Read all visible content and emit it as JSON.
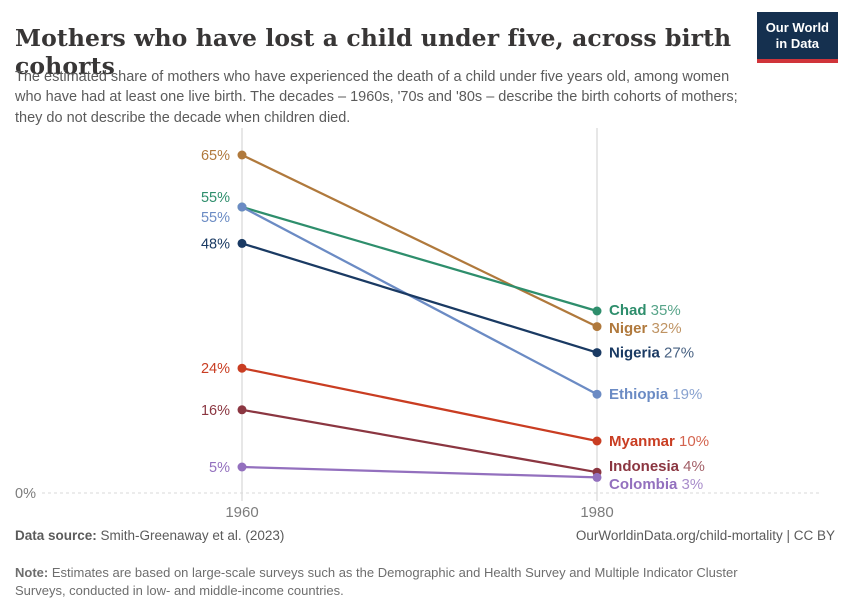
{
  "header": {
    "title": "Mothers who have lost a child under five, across birth cohorts",
    "subtitle": "The estimated share of mothers who have experienced the death of a child under five years old, among women who have had at least one live birth. The decades – 1960s, '70s and '80s – describe the birth cohorts of mothers; they do not describe the decade when children died.",
    "logo_line1": "Our World",
    "logo_line2": "in Data",
    "logo_bg": "#15304f",
    "logo_accent": "#d0343a"
  },
  "chart_data": {
    "type": "line",
    "subtype": "slope-chart",
    "x": [
      1960,
      1980
    ],
    "x_tick_labels": [
      "1960",
      "1980"
    ],
    "ylim": [
      0,
      70
    ],
    "baseline_label": "0%",
    "unit": "%",
    "grid": "dashed baseline at 0% only",
    "legend_position": "labels at line ends",
    "series": [
      {
        "name": "Niger",
        "values": [
          65,
          32
        ],
        "color": "#B0793C"
      },
      {
        "name": "Chad",
        "values": [
          55,
          35
        ],
        "color": "#2E8E6C"
      },
      {
        "name": "Ethiopia",
        "values": [
          55,
          19
        ],
        "color": "#6B8BC4"
      },
      {
        "name": "Nigeria",
        "values": [
          48,
          27
        ],
        "color": "#1A3A63"
      },
      {
        "name": "Myanmar",
        "values": [
          24,
          10
        ],
        "color": "#C93D22"
      },
      {
        "name": "Indonesia",
        "values": [
          16,
          4
        ],
        "color": "#8B3641"
      },
      {
        "name": "Colombia",
        "values": [
          5,
          3
        ],
        "color": "#9370BE"
      }
    ]
  },
  "footer": {
    "datasource_label": "Data source:",
    "datasource_value": " Smith-Greenaway et al. (2023)",
    "attribution": "OurWorldinData.org/child-mortality | CC BY",
    "note_label": "Note:",
    "note_value": " Estimates are based on large-scale surveys such as the Demographic and Health Survey and Multiple Indicator Cluster Surveys, conducted in low- and middle-income countries."
  }
}
